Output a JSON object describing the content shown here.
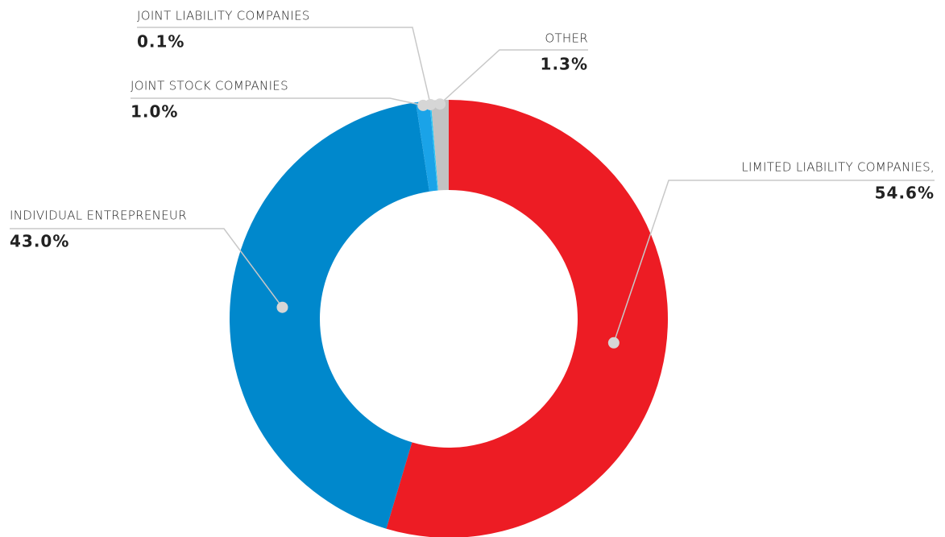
{
  "chart_data": {
    "type": "donut",
    "categories": [
      "LIMITED LIABILITY COMPANIES,",
      "INDIVIDUAL ENTREPRENEUR",
      "JOINT STOCK COMPANIES",
      "JOINT LIABILITY COMPANIES",
      "OTHER"
    ],
    "values": [
      54.6,
      43.0,
      1.0,
      0.1,
      1.3
    ],
    "value_labels": [
      "54.6%",
      "43.0%",
      "1.0%",
      "0.1%",
      "1.3%"
    ],
    "colors": [
      "#ed1c24",
      "#0088cc",
      "#1aa3e8",
      "#2ec5f2",
      "#c2c2c2"
    ]
  }
}
